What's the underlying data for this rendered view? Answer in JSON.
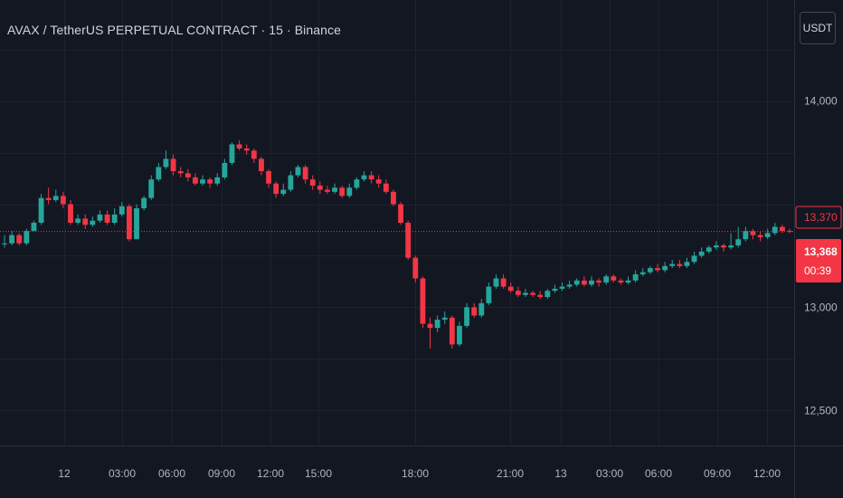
{
  "header": {
    "title": "AVAX / TetherUS PERPETUAL CONTRACT · 15 · Binance",
    "currency_button": "USDT"
  },
  "chart_data": {
    "type": "candlestick",
    "title": "AVAX / TetherUS PERPETUAL CONTRACT · 15 · Binance",
    "symbol": "AVAX / TetherUS PERPETUAL CONTRACT",
    "interval": "15",
    "exchange": "Binance",
    "currency": "USDT",
    "price_scale": {
      "ticks": [
        {
          "label": "14,000",
          "value": 14.0
        },
        {
          "label": "13,000",
          "value": 13.0
        },
        {
          "label": "12,500",
          "value": 12.5
        }
      ],
      "ylim": [
        12.33,
        14.49
      ]
    },
    "last_price": {
      "label": "13,368",
      "value": 13.368,
      "countdown": "00:39"
    },
    "marker_price": {
      "label": "13,370",
      "value": 13.37
    },
    "time_axis": {
      "labels": [
        "12",
        "03:00",
        "06:00",
        "09:00",
        "12:00",
        "15:00",
        "18:00",
        "21:00",
        "13",
        "03:00",
        "06:00",
        "09:00",
        "12:00"
      ]
    },
    "grid": true,
    "candles": [
      [
        13.31,
        13.31,
        13.35,
        13.29
      ],
      [
        13.31,
        13.35,
        13.37,
        13.3
      ],
      [
        13.35,
        13.31,
        13.36,
        13.3
      ],
      [
        13.31,
        13.37,
        13.38,
        13.3
      ],
      [
        13.37,
        13.41,
        13.42,
        13.37
      ],
      [
        13.41,
        13.53,
        13.55,
        13.4
      ],
      [
        13.53,
        13.52,
        13.58,
        13.5
      ],
      [
        13.52,
        13.54,
        13.57,
        13.51
      ],
      [
        13.54,
        13.5,
        13.56,
        13.48
      ],
      [
        13.5,
        13.41,
        13.52,
        13.4
      ],
      [
        13.41,
        13.43,
        13.45,
        13.4
      ],
      [
        13.43,
        13.4,
        13.45,
        13.38
      ],
      [
        13.4,
        13.42,
        13.44,
        13.39
      ],
      [
        13.42,
        13.45,
        13.47,
        13.41
      ],
      [
        13.45,
        13.41,
        13.47,
        13.4
      ],
      [
        13.41,
        13.45,
        13.48,
        13.4
      ],
      [
        13.45,
        13.49,
        13.51,
        13.44
      ],
      [
        13.49,
        13.33,
        13.5,
        13.32
      ],
      [
        13.33,
        13.48,
        13.5,
        13.33
      ],
      [
        13.48,
        13.53,
        13.54,
        13.47
      ],
      [
        13.53,
        13.62,
        13.64,
        13.52
      ],
      [
        13.62,
        13.68,
        13.7,
        13.61
      ],
      [
        13.68,
        13.72,
        13.76,
        13.67
      ],
      [
        13.72,
        13.66,
        13.74,
        13.64
      ],
      [
        13.66,
        13.65,
        13.68,
        13.63
      ],
      [
        13.65,
        13.63,
        13.67,
        13.61
      ],
      [
        13.63,
        13.6,
        13.65,
        13.59
      ],
      [
        13.6,
        13.62,
        13.64,
        13.59
      ],
      [
        13.62,
        13.6,
        13.63,
        13.58
      ],
      [
        13.6,
        13.63,
        13.65,
        13.59
      ],
      [
        13.63,
        13.7,
        13.72,
        13.62
      ],
      [
        13.7,
        13.79,
        13.8,
        13.69
      ],
      [
        13.79,
        13.77,
        13.81,
        13.76
      ],
      [
        13.77,
        13.76,
        13.79,
        13.74
      ],
      [
        13.76,
        13.72,
        13.77,
        13.7
      ],
      [
        13.72,
        13.66,
        13.73,
        13.64
      ],
      [
        13.66,
        13.6,
        13.67,
        13.58
      ],
      [
        13.6,
        13.55,
        13.61,
        13.53
      ],
      [
        13.55,
        13.57,
        13.6,
        13.54
      ],
      [
        13.57,
        13.64,
        13.66,
        13.56
      ],
      [
        13.64,
        13.68,
        13.69,
        13.63
      ],
      [
        13.68,
        13.62,
        13.69,
        13.6
      ],
      [
        13.62,
        13.59,
        13.64,
        13.57
      ],
      [
        13.59,
        13.57,
        13.61,
        13.55
      ],
      [
        13.57,
        13.56,
        13.59,
        13.55
      ],
      [
        13.56,
        13.58,
        13.6,
        13.55
      ],
      [
        13.58,
        13.54,
        13.59,
        13.53
      ],
      [
        13.54,
        13.58,
        13.6,
        13.53
      ],
      [
        13.58,
        13.62,
        13.63,
        13.57
      ],
      [
        13.62,
        13.64,
        13.66,
        13.61
      ],
      [
        13.64,
        13.62,
        13.66,
        13.6
      ],
      [
        13.62,
        13.6,
        13.64,
        13.58
      ],
      [
        13.6,
        13.56,
        13.62,
        13.55
      ],
      [
        13.56,
        13.5,
        13.57,
        13.49
      ],
      [
        13.5,
        13.41,
        13.51,
        13.4
      ],
      [
        13.41,
        13.24,
        13.42,
        13.23
      ],
      [
        13.24,
        13.14,
        13.25,
        13.12
      ],
      [
        13.14,
        12.92,
        13.15,
        12.9
      ],
      [
        12.92,
        12.9,
        12.95,
        12.8
      ],
      [
        12.9,
        12.94,
        12.96,
        12.88
      ],
      [
        12.94,
        12.95,
        12.98,
        12.92
      ],
      [
        12.95,
        12.82,
        12.96,
        12.8
      ],
      [
        12.82,
        12.91,
        12.93,
        12.81
      ],
      [
        12.91,
        13.0,
        13.02,
        12.9
      ],
      [
        13.0,
        12.96,
        13.02,
        12.95
      ],
      [
        12.96,
        13.02,
        13.04,
        12.95
      ],
      [
        13.02,
        13.1,
        13.12,
        13.01
      ],
      [
        13.1,
        13.14,
        13.16,
        13.09
      ],
      [
        13.14,
        13.1,
        13.16,
        13.09
      ],
      [
        13.1,
        13.08,
        13.12,
        13.07
      ],
      [
        13.08,
        13.06,
        13.1,
        13.05
      ],
      [
        13.06,
        13.07,
        13.09,
        13.05
      ],
      [
        13.07,
        13.06,
        13.08,
        13.05
      ],
      [
        13.06,
        13.05,
        13.08,
        13.04
      ],
      [
        13.05,
        13.08,
        13.09,
        13.04
      ],
      [
        13.08,
        13.09,
        13.11,
        13.07
      ],
      [
        13.09,
        13.1,
        13.12,
        13.08
      ],
      [
        13.1,
        13.11,
        13.13,
        13.09
      ],
      [
        13.11,
        13.13,
        13.14,
        13.1
      ],
      [
        13.13,
        13.11,
        13.15,
        13.1
      ],
      [
        13.11,
        13.13,
        13.15,
        13.1
      ],
      [
        13.13,
        13.12,
        13.14,
        13.1
      ],
      [
        13.12,
        13.15,
        13.16,
        13.11
      ],
      [
        13.15,
        13.13,
        13.16,
        13.12
      ],
      [
        13.13,
        13.12,
        13.14,
        13.11
      ],
      [
        13.12,
        13.13,
        13.15,
        13.11
      ],
      [
        13.13,
        13.16,
        13.18,
        13.12
      ],
      [
        13.16,
        13.17,
        13.19,
        13.15
      ],
      [
        13.17,
        13.19,
        13.2,
        13.16
      ],
      [
        13.19,
        13.18,
        13.21,
        13.17
      ],
      [
        13.18,
        13.2,
        13.22,
        13.17
      ],
      [
        13.2,
        13.21,
        13.23,
        13.19
      ],
      [
        13.21,
        13.2,
        13.23,
        13.19
      ],
      [
        13.2,
        13.22,
        13.24,
        13.19
      ],
      [
        13.22,
        13.25,
        13.27,
        13.21
      ],
      [
        13.25,
        13.27,
        13.29,
        13.24
      ],
      [
        13.27,
        13.29,
        13.3,
        13.26
      ],
      [
        13.29,
        13.3,
        13.32,
        13.28
      ],
      [
        13.3,
        13.29,
        13.31,
        13.27
      ],
      [
        13.29,
        13.3,
        13.36,
        13.28
      ],
      [
        13.3,
        13.33,
        13.39,
        13.29
      ],
      [
        13.33,
        13.37,
        13.39,
        13.32
      ],
      [
        13.37,
        13.35,
        13.38,
        13.33
      ],
      [
        13.35,
        13.34,
        13.37,
        13.32
      ],
      [
        13.34,
        13.36,
        13.38,
        13.33
      ],
      [
        13.36,
        13.39,
        13.41,
        13.35
      ],
      [
        13.39,
        13.37,
        13.4,
        13.36
      ],
      [
        13.37,
        13.368,
        13.38,
        13.36
      ]
    ]
  }
}
